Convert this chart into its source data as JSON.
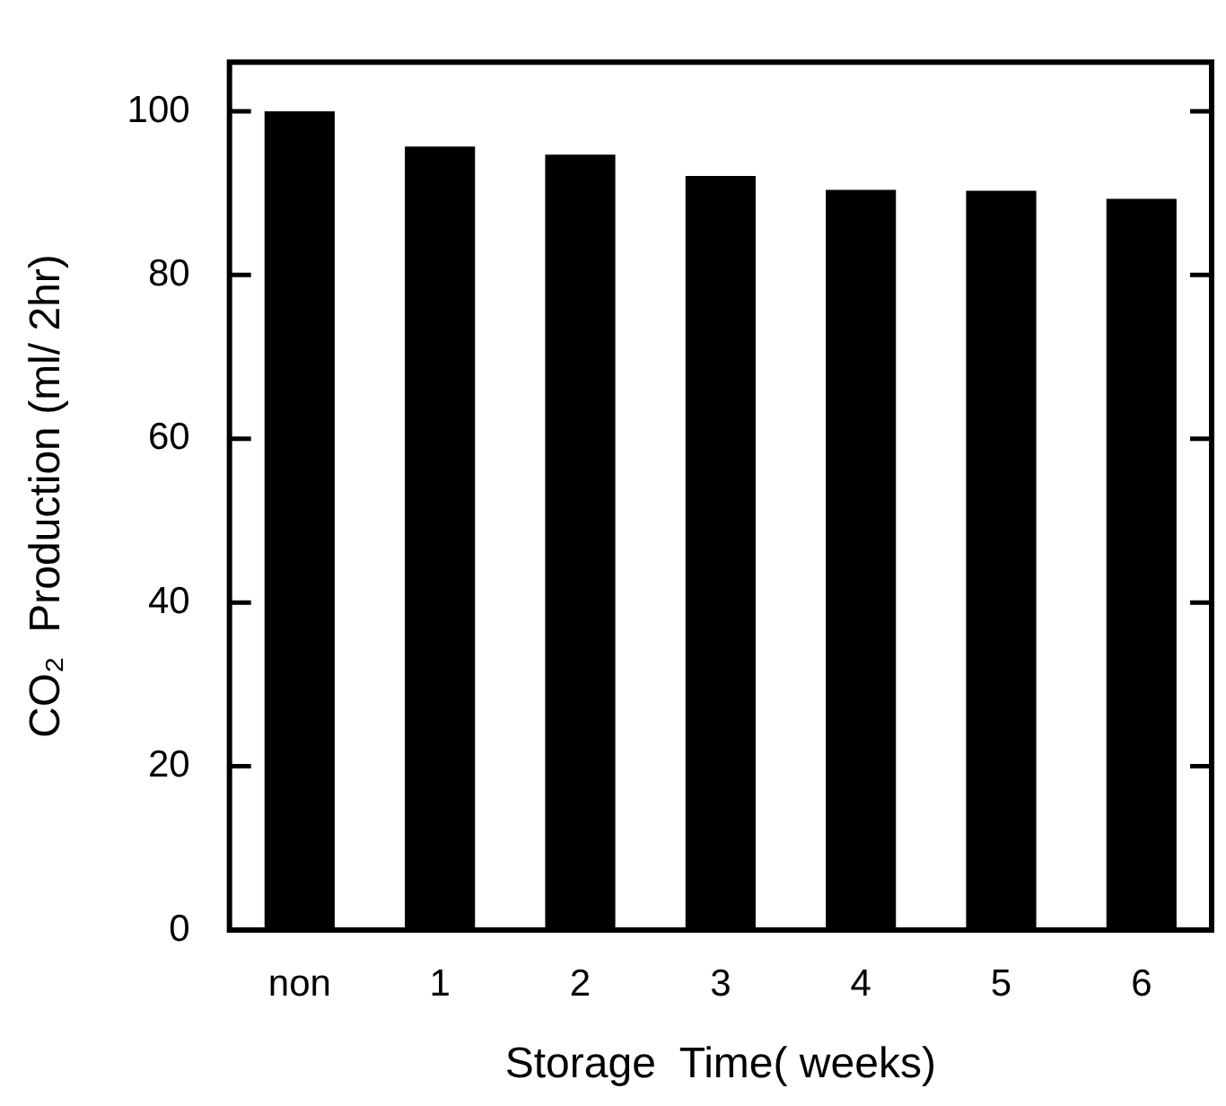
{
  "chart_data": {
    "type": "bar",
    "xlabel": "Storage  Time( weeks)",
    "ylabel": "CO₂  Production (ml/ 2hr)",
    "categories": [
      "non",
      "1",
      "2",
      "3",
      "4",
      "5",
      "6"
    ],
    "values": [
      100,
      95.7,
      94.7,
      92.1,
      90.4,
      90.3,
      89.3
    ],
    "color": "#000000",
    "ylim": [
      0,
      106
    ],
    "yticks": [
      0,
      20,
      40,
      60,
      80,
      100
    ],
    "grid": false,
    "legend": false
  }
}
